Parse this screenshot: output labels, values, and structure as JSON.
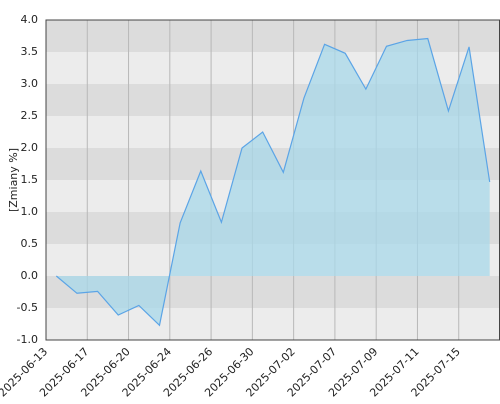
{
  "chart_data": {
    "type": "area",
    "y_label": "[Zmiany %]",
    "x": [
      0,
      1,
      2,
      3,
      4,
      5,
      6,
      7,
      8,
      9,
      10,
      11,
      12,
      13,
      14,
      15,
      16,
      17,
      18,
      19,
      20,
      21
    ],
    "series": [
      {
        "color": "#5ba4e6",
        "fill": "#a8d8ea",
        "values": [
          0,
          -0.27,
          -0.24,
          -0.61,
          -0.46,
          -0.77,
          0.83,
          1.64,
          0.84,
          2.0,
          2.25,
          1.62,
          2.78,
          3.62,
          3.48,
          2.92,
          3.59,
          3.68,
          3.71,
          2.58,
          3.58,
          1.47
        ]
      }
    ],
    "xlim": [
      -0.5,
      21.5
    ],
    "xticks": [
      {
        "value": -0.5,
        "label": "2025-06-13"
      },
      {
        "value": 1.5,
        "label": "2025-06-17"
      },
      {
        "value": 3.5,
        "label": "2025-06-20"
      },
      {
        "value": 5.5,
        "label": "2025-06-24"
      },
      {
        "value": 7.5,
        "label": "2025-06-26"
      },
      {
        "value": 9.5,
        "label": "2025-06-30"
      },
      {
        "value": 11.5,
        "label": "2025-07-02"
      },
      {
        "value": 13.5,
        "label": "2025-07-07"
      },
      {
        "value": 15.5,
        "label": "2025-07-09"
      },
      {
        "value": 17.5,
        "label": "2025-07-11"
      },
      {
        "value": 19.5,
        "label": "2025-07-15"
      }
    ],
    "ylim": [
      -1,
      4
    ],
    "yticks": [
      {
        "value": -1,
        "label": "-1.0"
      },
      -0.5,
      {
        "value": 0,
        "label": "0.0"
      },
      0.5,
      {
        "value": 1,
        "label": "1.0"
      },
      1.5,
      {
        "value": 2,
        "label": "2.0"
      },
      2.5,
      {
        "value": 3,
        "label": "3.0"
      },
      3.5,
      {
        "value": 4,
        "label": "4.0"
      }
    ],
    "band_colors": [
      "#ececec",
      "#dcdcdc"
    ],
    "grid": true
  }
}
